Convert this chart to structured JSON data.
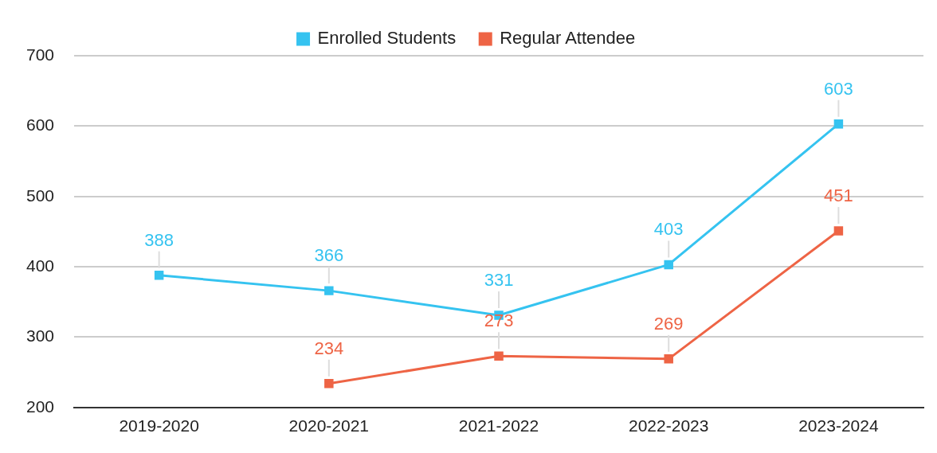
{
  "chart_data": {
    "type": "line",
    "categories": [
      "2019-2020",
      "2020-2021",
      "2021-2022",
      "2022-2023",
      "2023-2024"
    ],
    "series": [
      {
        "name": "Enrolled Students",
        "color": "#35c3f0",
        "values": [
          388,
          366,
          331,
          403,
          603
        ]
      },
      {
        "name": "Regular Attendee",
        "color": "#ee6445",
        "values": [
          null,
          234,
          273,
          269,
          451
        ]
      }
    ],
    "ylim": [
      200,
      700
    ],
    "yticks": [
      200,
      300,
      400,
      500,
      600,
      700
    ],
    "grid": "y",
    "legend": "top",
    "marker": "square",
    "line_style": "solid",
    "data_labels": true
  }
}
